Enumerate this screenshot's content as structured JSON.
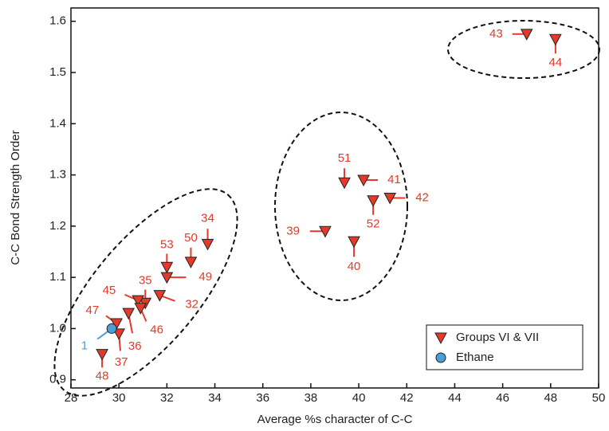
{
  "chart_data": {
    "type": "scatter",
    "xlabel": "Average %s character of C-C",
    "ylabel": "C-C Bond Strength Order",
    "xlim": [
      28,
      50
    ],
    "ylim": [
      0.884,
      1.626
    ],
    "xticks": [
      28,
      30,
      32,
      34,
      36,
      38,
      40,
      42,
      44,
      46,
      48,
      50
    ],
    "yticks": [
      0.9,
      {
        "value": 1,
        "label": "1.0"
      },
      1.1,
      1.2,
      1.3,
      1.4,
      1.5,
      1.6
    ],
    "legend": "lower right",
    "series": [
      {
        "name": "Groups VI & VII",
        "color": "#e5392a",
        "marker": "triangle-down",
        "labels": [
          "43",
          "44",
          "51",
          "41",
          "52",
          "42",
          "39",
          "40",
          "34",
          "50",
          "53",
          "49",
          "35",
          "45",
          "32",
          "46",
          "36",
          "47",
          "37",
          "48"
        ],
        "x": [
          47.0,
          48.2,
          39.4,
          40.2,
          40.6,
          41.3,
          38.6,
          39.8,
          33.7,
          33.0,
          32.0,
          32.0,
          31.1,
          30.8,
          31.7,
          30.9,
          30.4,
          29.9,
          30.0,
          29.3
        ],
        "values": [
          1.575,
          1.565,
          1.285,
          1.29,
          1.25,
          1.255,
          1.19,
          1.17,
          1.165,
          1.13,
          1.12,
          1.1,
          1.05,
          1.055,
          1.065,
          1.04,
          1.03,
          1.01,
          0.99,
          0.95
        ]
      },
      {
        "name": "Ethane",
        "color": "#4a9fd6",
        "marker": "circle",
        "labels": [
          "1"
        ],
        "x": [
          29.7
        ],
        "values": [
          1.0
        ]
      }
    ]
  }
}
